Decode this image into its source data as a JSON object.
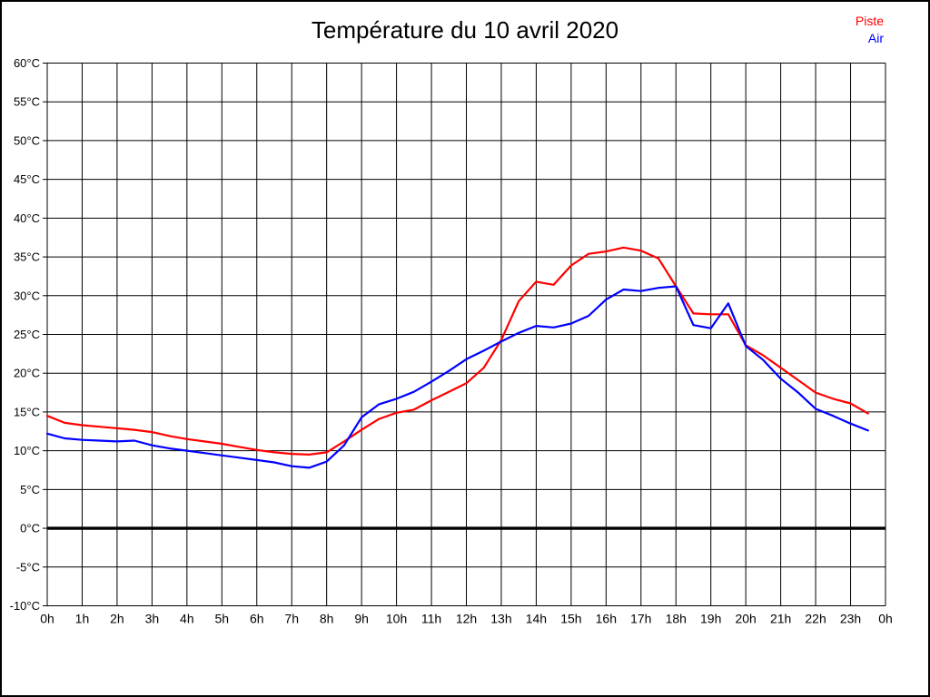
{
  "title": "Température du 10 avril 2020",
  "legend": [
    {
      "label": "Piste",
      "color": "#ff0000"
    },
    {
      "label": "Air",
      "color": "#0000ff"
    }
  ],
  "colors": {
    "grid": "#000000",
    "zero_line": "#000000",
    "background": "#ffffff",
    "text": "#000000"
  },
  "chart_data": {
    "type": "line",
    "title": "Température du 10 avril 2020",
    "xlabel": "",
    "ylabel": "",
    "xlim": [
      0,
      24
    ],
    "ylim": [
      -10,
      60
    ],
    "x_step": 1,
    "y_step": 5,
    "grid": true,
    "zero_line_bold": true,
    "legend_position": "top-right",
    "x_tick_labels": [
      "0h",
      "1h",
      "2h",
      "3h",
      "4h",
      "5h",
      "6h",
      "7h",
      "8h",
      "9h",
      "10h",
      "11h",
      "12h",
      "13h",
      "14h",
      "15h",
      "16h",
      "17h",
      "18h",
      "19h",
      "20h",
      "21h",
      "22h",
      "23h",
      "0h"
    ],
    "y_tick_suffix": "°C",
    "x": [
      0,
      0.5,
      1,
      1.5,
      2,
      2.5,
      3,
      3.5,
      4,
      4.5,
      5,
      5.5,
      6,
      6.5,
      7,
      7.5,
      8,
      8.5,
      9,
      9.5,
      10,
      10.5,
      11,
      11.5,
      12,
      12.5,
      13,
      13.5,
      14,
      14.5,
      15,
      15.5,
      16,
      16.5,
      17,
      17.5,
      18,
      18.5,
      19,
      19.5,
      20,
      20.5,
      21,
      21.5,
      22,
      22.5,
      23,
      23.5
    ],
    "series": [
      {
        "name": "Piste",
        "color": "#ff0000",
        "values": [
          14.5,
          13.6,
          13.3,
          13.1,
          12.9,
          12.7,
          12.4,
          11.9,
          11.5,
          11.2,
          10.9,
          10.5,
          10.1,
          9.8,
          9.6,
          9.5,
          9.8,
          11.2,
          12.7,
          14.1,
          14.9,
          15.3,
          16.5,
          17.6,
          18.7,
          20.7,
          24.3,
          29.3,
          31.8,
          31.4,
          33.9,
          35.4,
          35.7,
          36.2,
          35.8,
          34.8,
          31.2,
          27.7,
          27.6,
          27.6,
          23.6,
          22.3,
          20.7,
          19.1,
          17.5,
          16.7,
          16.1,
          14.8
        ]
      },
      {
        "name": "Air",
        "color": "#0000ff",
        "values": [
          12.2,
          11.6,
          11.4,
          11.3,
          11.2,
          11.3,
          10.7,
          10.3,
          10.0,
          9.7,
          9.4,
          9.1,
          8.8,
          8.5,
          8.0,
          7.8,
          8.6,
          10.7,
          14.3,
          16.0,
          16.7,
          17.6,
          18.9,
          20.3,
          21.8,
          22.9,
          24.1,
          25.2,
          26.1,
          25.9,
          26.4,
          27.4,
          29.5,
          30.8,
          30.6,
          31.0,
          31.2,
          26.2,
          25.8,
          29.0,
          23.5,
          21.7,
          19.3,
          17.5,
          15.4,
          14.5,
          13.5,
          12.6
        ]
      }
    ]
  }
}
